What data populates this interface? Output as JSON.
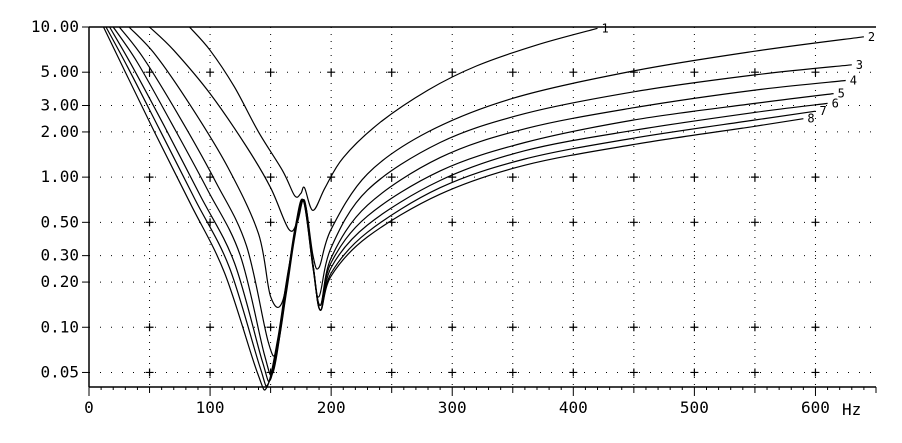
{
  "chart_data": {
    "type": "line",
    "title": "",
    "xlabel": "",
    "ylabel": "",
    "x_unit": "Hz",
    "xlim": [
      0,
      650
    ],
    "ylim": [
      0.04,
      10
    ],
    "y_scale": "log",
    "grid": "dotted",
    "x_ticks": [
      0,
      100,
      200,
      300,
      400,
      500,
      600
    ],
    "x_tick_labels": [
      "0",
      "100",
      "200",
      "300",
      "400",
      "500",
      "600"
    ],
    "y_ticks": [
      10,
      5,
      3,
      2,
      1,
      0.5,
      0.3,
      0.2,
      0.1,
      0.05
    ],
    "y_tick_labels": [
      "10.00",
      "5.00",
      "3.00",
      "2.00",
      "1.00",
      "0.50",
      "0.30",
      "0.20",
      "0.10",
      "0.05"
    ],
    "line_color": "#000000",
    "series": [
      {
        "name": "1",
        "points": [
          [
            83,
            10
          ],
          [
            100,
            7
          ],
          [
            120,
            4
          ],
          [
            140,
            2
          ],
          [
            160,
            1.1
          ],
          [
            170,
            0.75
          ],
          [
            175,
            0.78
          ],
          [
            178,
            0.85
          ],
          [
            185,
            0.6
          ],
          [
            195,
            0.85
          ],
          [
            210,
            1.35
          ],
          [
            240,
            2.3
          ],
          [
            280,
            3.8
          ],
          [
            320,
            5.5
          ],
          [
            370,
            7.6
          ],
          [
            420,
            9.8
          ]
        ]
      },
      {
        "name": "2",
        "points": [
          [
            50,
            10
          ],
          [
            70,
            7
          ],
          [
            100,
            3.6
          ],
          [
            130,
            1.6
          ],
          [
            150,
            0.85
          ],
          [
            165,
            0.45
          ],
          [
            172,
            0.5
          ],
          [
            178,
            0.7
          ],
          [
            185,
            0.3
          ],
          [
            190,
            0.25
          ],
          [
            200,
            0.45
          ],
          [
            230,
            1.05
          ],
          [
            280,
            2.0
          ],
          [
            350,
            3.35
          ],
          [
            450,
            5.1
          ],
          [
            550,
            6.9
          ],
          [
            640,
            8.6
          ]
        ]
      },
      {
        "name": "3",
        "points": [
          [
            33,
            10
          ],
          [
            55,
            6.5
          ],
          [
            85,
            2.9
          ],
          [
            115,
            1.15
          ],
          [
            140,
            0.42
          ],
          [
            150,
            0.16
          ],
          [
            160,
            0.15
          ],
          [
            170,
            0.45
          ],
          [
            177,
            0.7
          ],
          [
            185,
            0.25
          ],
          [
            190,
            0.16
          ],
          [
            200,
            0.34
          ],
          [
            230,
            0.82
          ],
          [
            290,
            1.7
          ],
          [
            360,
            2.65
          ],
          [
            450,
            3.7
          ],
          [
            550,
            4.8
          ],
          [
            630,
            5.6
          ]
        ]
      },
      {
        "name": "4",
        "points": [
          [
            25,
            10
          ],
          [
            45,
            6.2
          ],
          [
            75,
            2.5
          ],
          [
            105,
            0.92
          ],
          [
            130,
            0.35
          ],
          [
            148,
            0.08
          ],
          [
            155,
            0.07
          ],
          [
            163,
            0.17
          ],
          [
            170,
            0.4
          ],
          [
            177,
            0.7
          ],
          [
            185,
            0.25
          ],
          [
            191,
            0.14
          ],
          [
            200,
            0.29
          ],
          [
            230,
            0.65
          ],
          [
            290,
            1.35
          ],
          [
            360,
            2.1
          ],
          [
            450,
            2.9
          ],
          [
            550,
            3.8
          ],
          [
            625,
            4.4
          ]
        ]
      },
      {
        "name": "5",
        "points": [
          [
            20,
            10
          ],
          [
            40,
            5.8
          ],
          [
            68,
            2.3
          ],
          [
            98,
            0.82
          ],
          [
            125,
            0.3
          ],
          [
            145,
            0.065
          ],
          [
            152,
            0.05
          ],
          [
            160,
            0.12
          ],
          [
            168,
            0.35
          ],
          [
            177,
            0.7
          ],
          [
            185,
            0.26
          ],
          [
            191,
            0.14
          ],
          [
            200,
            0.27
          ],
          [
            230,
            0.55
          ],
          [
            290,
            1.1
          ],
          [
            360,
            1.7
          ],
          [
            450,
            2.4
          ],
          [
            550,
            3.1
          ],
          [
            615,
            3.6
          ]
        ]
      },
      {
        "name": "6",
        "points": [
          [
            17,
            10
          ],
          [
            35,
            5.6
          ],
          [
            62,
            2.2
          ],
          [
            92,
            0.75
          ],
          [
            120,
            0.27
          ],
          [
            143,
            0.06
          ],
          [
            150,
            0.045
          ],
          [
            158,
            0.1
          ],
          [
            167,
            0.3
          ],
          [
            177,
            0.7
          ],
          [
            185,
            0.26
          ],
          [
            191,
            0.13
          ],
          [
            200,
            0.25
          ],
          [
            230,
            0.48
          ],
          [
            290,
            0.95
          ],
          [
            360,
            1.5
          ],
          [
            450,
            2.05
          ],
          [
            550,
            2.7
          ],
          [
            610,
            3.1
          ]
        ]
      },
      {
        "name": "7",
        "points": [
          [
            14,
            10
          ],
          [
            32,
            5.4
          ],
          [
            58,
            2.1
          ],
          [
            88,
            0.7
          ],
          [
            116,
            0.25
          ],
          [
            141,
            0.055
          ],
          [
            148,
            0.042
          ],
          [
            157,
            0.09
          ],
          [
            166,
            0.27
          ],
          [
            177,
            0.7
          ],
          [
            185,
            0.26
          ],
          [
            191,
            0.13
          ],
          [
            200,
            0.23
          ],
          [
            230,
            0.43
          ],
          [
            290,
            0.85
          ],
          [
            360,
            1.32
          ],
          [
            450,
            1.82
          ],
          [
            550,
            2.4
          ],
          [
            600,
            2.75
          ]
        ]
      },
      {
        "name": "8",
        "points": [
          [
            12,
            10
          ],
          [
            29,
            5.2
          ],
          [
            54,
            2.0
          ],
          [
            84,
            0.66
          ],
          [
            112,
            0.23
          ],
          [
            139,
            0.05
          ],
          [
            147,
            0.04
          ],
          [
            156,
            0.085
          ],
          [
            165,
            0.25
          ],
          [
            177,
            0.7
          ],
          [
            185,
            0.26
          ],
          [
            191,
            0.13
          ],
          [
            200,
            0.22
          ],
          [
            230,
            0.4
          ],
          [
            290,
            0.77
          ],
          [
            360,
            1.2
          ],
          [
            450,
            1.65
          ],
          [
            550,
            2.18
          ],
          [
            590,
            2.45
          ]
        ]
      }
    ]
  }
}
